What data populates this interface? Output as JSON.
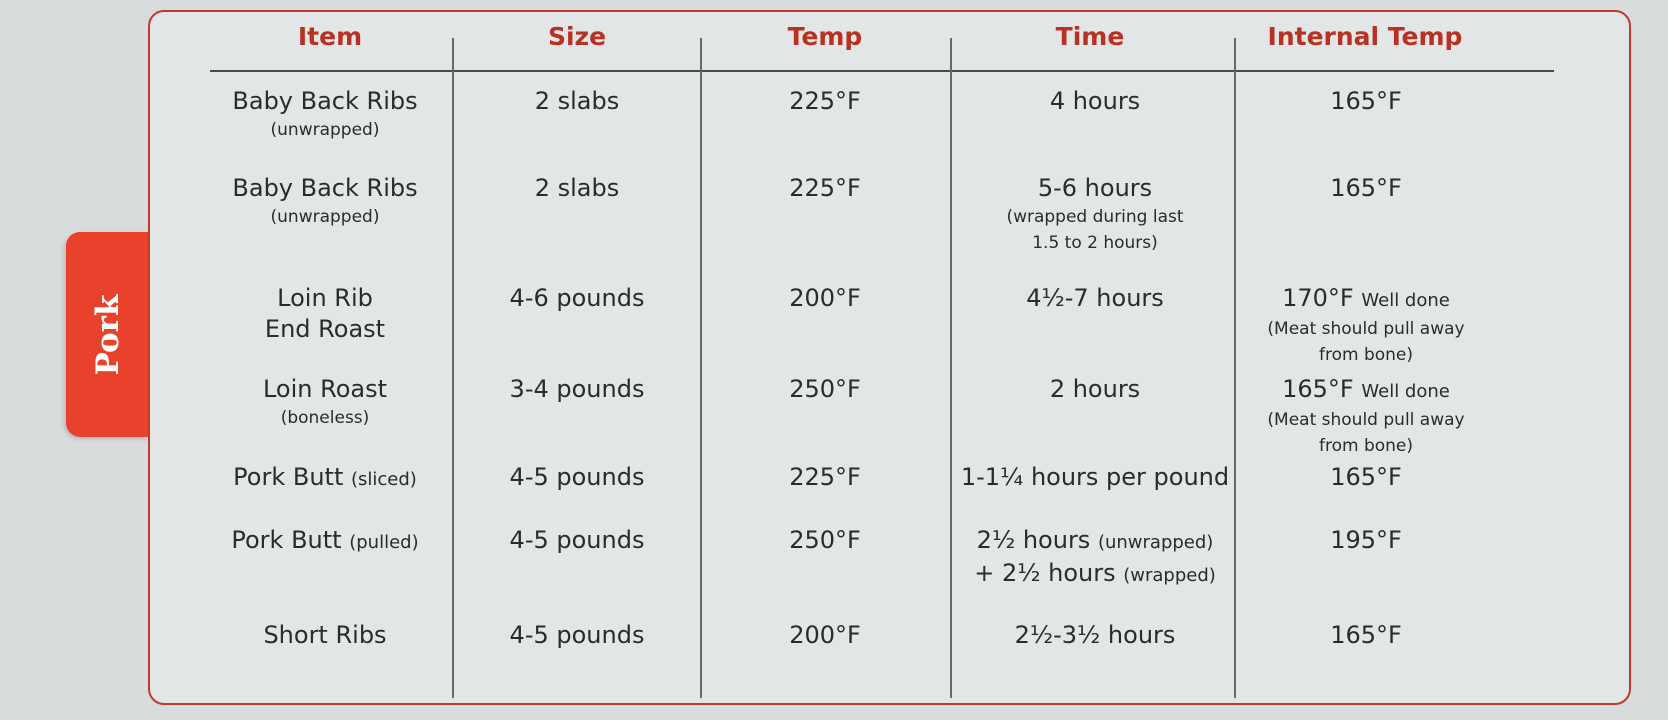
{
  "tab": {
    "label": "Pork"
  },
  "headers": [
    "Item",
    "Size",
    "Temp",
    "Time",
    "Internal Temp"
  ],
  "rows": [
    {
      "item": "Baby Back Ribs",
      "item_note": "(unwrapped)",
      "size": "2 slabs",
      "temp": "225°F",
      "time": "4 hours",
      "time_note": "",
      "internal": "165°F",
      "internal_suffix": "",
      "internal_note1": "",
      "internal_note2": ""
    },
    {
      "item": "Baby Back Ribs",
      "item_note": "(unwrapped)",
      "size": "2 slabs",
      "temp": "225°F",
      "time": "5-6 hours",
      "time_note1": "(wrapped during last",
      "time_note2": "1.5 to 2 hours)",
      "internal": "165°F",
      "internal_suffix": "",
      "internal_note1": "",
      "internal_note2": ""
    },
    {
      "item": "Loin Rib",
      "item2": "End Roast",
      "size": "4-6 pounds",
      "temp": "200°F",
      "time": "4½-7 hours",
      "internal": "170°F",
      "internal_suffix": "Well done",
      "internal_note1": "(Meat should pull away",
      "internal_note2": "from bone)"
    },
    {
      "item": "Loin Roast",
      "item_note": "(boneless)",
      "size": "3-4 pounds",
      "temp": "250°F",
      "time": "2 hours",
      "internal": "165°F",
      "internal_suffix": "Well done",
      "internal_note1": "(Meat should pull away",
      "internal_note2": "from bone)"
    },
    {
      "item": "Pork Butt",
      "item_inline_note": "(sliced)",
      "size": "4-5 pounds",
      "temp": "225°F",
      "time": "1-1¼ hours per pound",
      "internal": "165°F"
    },
    {
      "item": "Pork Butt",
      "item_inline_note": "(pulled)",
      "size": "4-5 pounds",
      "temp": "250°F",
      "time": "2½ hours",
      "time_inline_note": "(unwrapped)",
      "time2": "+ 2½ hours",
      "time2_inline_note": "(wrapped)",
      "internal": "195°F"
    },
    {
      "item": "Short Ribs",
      "size": "4-5 pounds",
      "temp": "200°F",
      "time": "2½-3½ hours",
      "internal": "165°F"
    }
  ],
  "colors": {
    "accent": "#b83223",
    "tab": "#e8412c",
    "border": "#c0392b",
    "background": "#e3e6e6"
  }
}
